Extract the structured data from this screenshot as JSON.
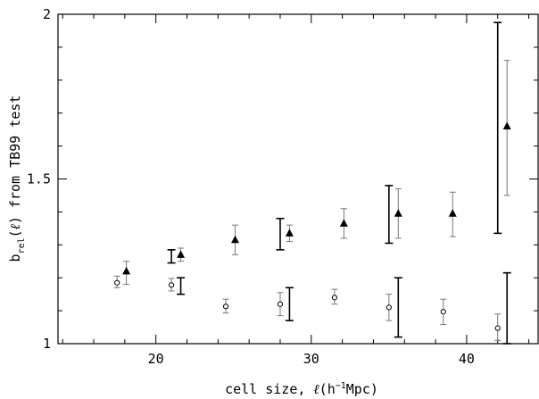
{
  "chart_data": {
    "type": "scatter",
    "title": "",
    "xlabel": "cell size, ℓ(h⁻¹Mpc)",
    "ylabel": "b_rel(ℓ) from TB99 test",
    "xlim": [
      13.7,
      44.6
    ],
    "ylim": [
      1.0,
      2.0
    ],
    "grid": false,
    "legend": "none",
    "x_ticks": [
      {
        "value": 20,
        "label": "20"
      },
      {
        "value": 30,
        "label": "30"
      },
      {
        "value": 40,
        "label": "40"
      }
    ],
    "y_ticks": [
      {
        "value": 1,
        "label": "1"
      },
      {
        "value": 1.5,
        "label": "1.5"
      },
      {
        "value": 2,
        "label": "2"
      }
    ],
    "series": [
      {
        "marker": "triangle",
        "color": "#000000",
        "errorbar_color": "#777777",
        "points": [
          {
            "x": 18.1,
            "y": 1.22,
            "lo": 1.18,
            "hi": 1.25
          },
          {
            "x": 21.6,
            "y": 1.27,
            "lo": 1.25,
            "hi": 1.29
          },
          {
            "x": 25.1,
            "y": 1.315,
            "lo": 1.27,
            "hi": 1.36
          },
          {
            "x": 28.6,
            "y": 1.335,
            "lo": 1.31,
            "hi": 1.36
          },
          {
            "x": 32.1,
            "y": 1.365,
            "lo": 1.32,
            "hi": 1.41
          },
          {
            "x": 35.6,
            "y": 1.395,
            "lo": 1.32,
            "hi": 1.47
          },
          {
            "x": 39.1,
            "y": 1.395,
            "lo": 1.325,
            "hi": 1.46
          },
          {
            "x": 42.6,
            "y": 1.66,
            "lo": 1.45,
            "hi": 1.86
          }
        ]
      },
      {
        "marker": "open-circle",
        "color": "#000000",
        "errorbar_color": "#777777",
        "points": [
          {
            "x": 17.5,
            "y": 1.185,
            "lo": 1.17,
            "hi": 1.205
          },
          {
            "x": 21.0,
            "y": 1.178,
            "lo": 1.16,
            "hi": 1.198
          },
          {
            "x": 24.5,
            "y": 1.113,
            "lo": 1.093,
            "hi": 1.135
          },
          {
            "x": 28.0,
            "y": 1.12,
            "lo": 1.085,
            "hi": 1.155
          },
          {
            "x": 31.5,
            "y": 1.14,
            "lo": 1.12,
            "hi": 1.165
          },
          {
            "x": 35.0,
            "y": 1.11,
            "lo": 1.07,
            "hi": 1.15
          },
          {
            "x": 38.5,
            "y": 1.097,
            "lo": 1.058,
            "hi": 1.135
          },
          {
            "x": 42.0,
            "y": 1.047,
            "lo": 1.01,
            "hi": 1.09
          }
        ]
      }
    ],
    "extra_errorbars": {
      "color": "#000000",
      "bars": [
        {
          "x": 21.0,
          "lo": 1.245,
          "hi": 1.285
        },
        {
          "x": 28.0,
          "lo": 1.285,
          "hi": 1.38
        },
        {
          "x": 35.0,
          "lo": 1.305,
          "hi": 1.48
        },
        {
          "x": 42.0,
          "lo": 1.335,
          "hi": 1.975
        },
        {
          "x": 21.6,
          "lo": 1.15,
          "hi": 1.2
        },
        {
          "x": 28.6,
          "lo": 1.07,
          "hi": 1.17
        },
        {
          "x": 35.6,
          "lo": 1.02,
          "hi": 1.2
        },
        {
          "x": 42.6,
          "lo": 1.0,
          "hi": 1.215
        }
      ]
    }
  }
}
